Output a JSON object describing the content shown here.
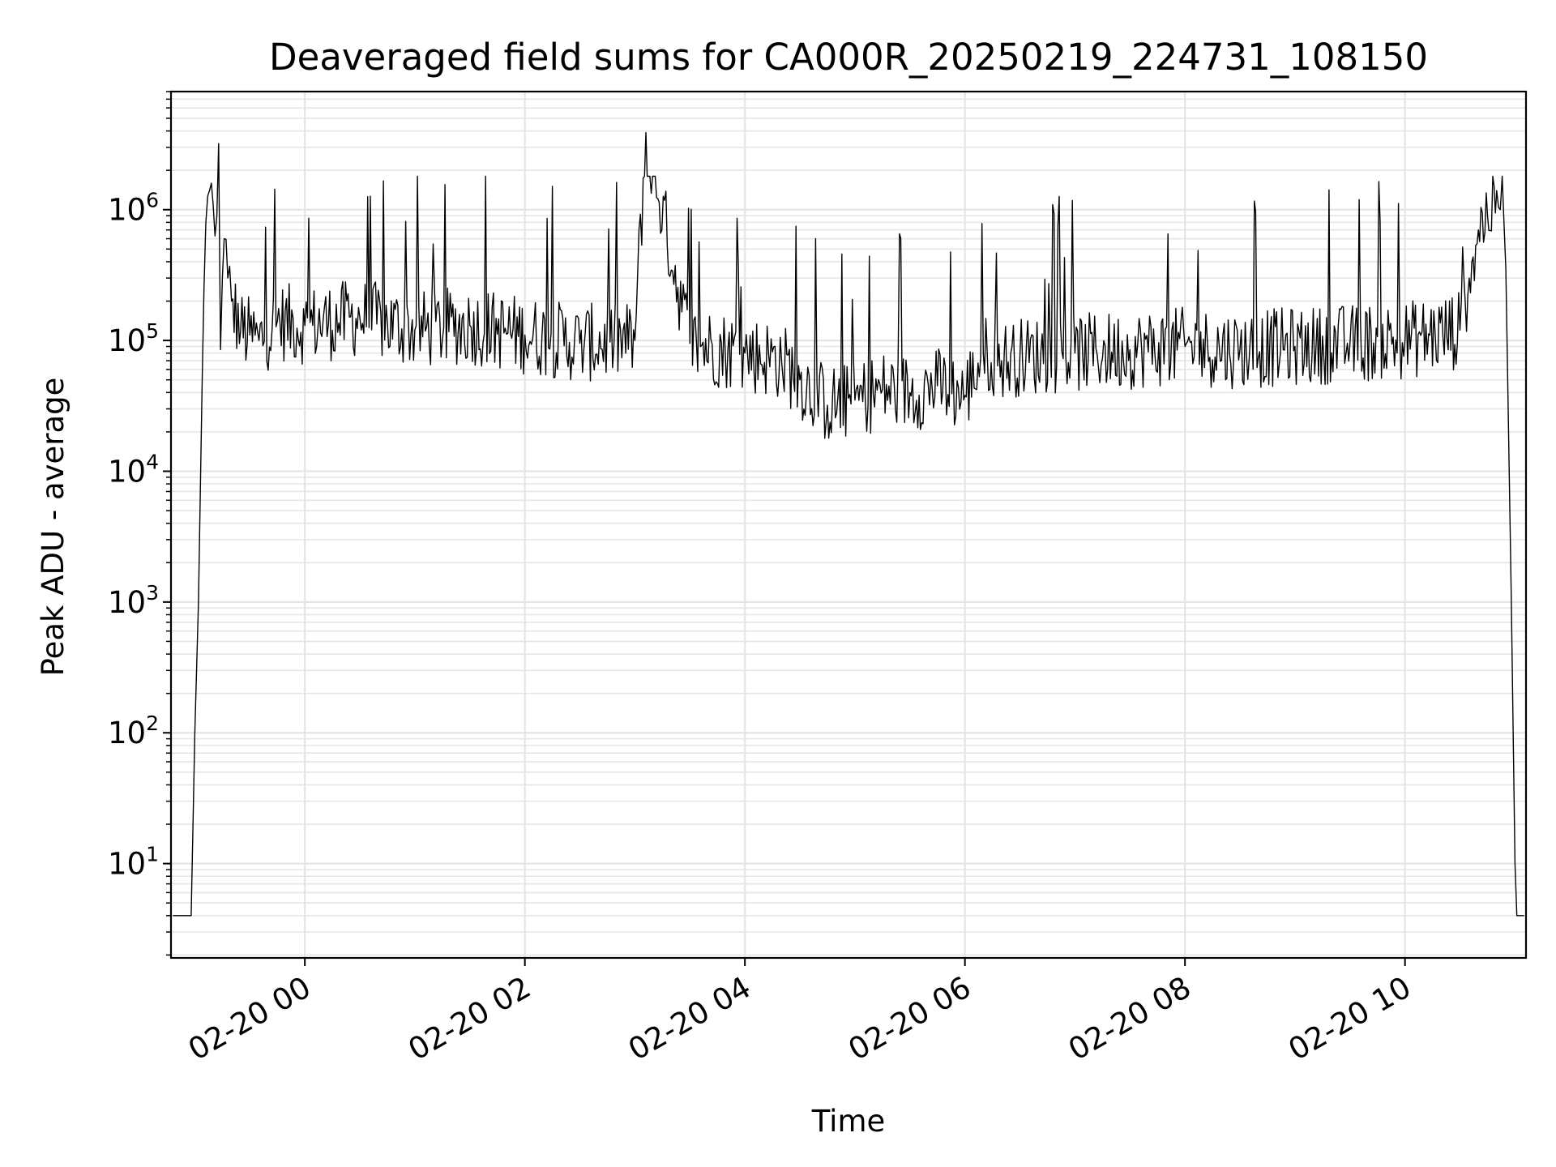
{
  "chart_data": {
    "type": "line",
    "title": "Deaveraged field sums for CA000R_20250219_224731_108150",
    "xlabel": "Time",
    "ylabel": "Peak ADU - average",
    "x_scale": "time",
    "y_scale": "log",
    "xlim": [
      "2025-02-19 22:47",
      "2025-02-20 11:06"
    ],
    "ylim": [
      1.9,
      8000000
    ],
    "grid": true,
    "legend": "none",
    "line_color": "#000000",
    "grid_color": "#e5e5e5",
    "x_ticks": [
      {
        "value": "2025-02-20 00:00",
        "label": "02-20 00"
      },
      {
        "value": "2025-02-20 02:00",
        "label": "02-20 02"
      },
      {
        "value": "2025-02-20 04:00",
        "label": "02-20 04"
      },
      {
        "value": "2025-02-20 06:00",
        "label": "02-20 06"
      },
      {
        "value": "2025-02-20 08:00",
        "label": "02-20 08"
      },
      {
        "value": "2025-02-20 10:00",
        "label": "02-20 10"
      }
    ],
    "y_ticks": [
      {
        "value": 10,
        "base": "10",
        "exp": "1"
      },
      {
        "value": 100,
        "base": "10",
        "exp": "2"
      },
      {
        "value": 1000,
        "base": "10",
        "exp": "3"
      },
      {
        "value": 10000,
        "base": "10",
        "exp": "4"
      },
      {
        "value": 100000,
        "base": "10",
        "exp": "5"
      },
      {
        "value": 1000000,
        "base": "10",
        "exp": "6"
      }
    ],
    "series": [
      {
        "x": [
          "2025-02-19 22:48",
          "2025-02-19 22:52",
          "2025-02-19 22:55",
          "2025-02-19 22:58",
          "2025-02-19 23:00",
          "2025-02-19 23:02",
          "2025-02-19 23:04",
          "2025-02-19 23:06",
          "2025-02-19 23:08",
          "2025-02-19 23:10",
          "2025-02-19 23:12",
          "2025-02-19 23:13",
          "2025-02-19 23:14",
          "2025-02-19 23:16",
          "2025-02-19 23:18",
          "2025-02-19 23:20",
          "2025-02-19 23:25",
          "2025-02-19 23:30",
          "2025-02-19 23:35",
          "2025-02-19 23:45",
          "2025-02-20 00:00",
          "2025-02-20 00:30",
          "2025-02-20 01:00",
          "2025-02-20 01:30",
          "2025-02-20 02:00",
          "2025-02-20 02:30",
          "2025-02-20 03:00",
          "2025-02-20 03:06",
          "2025-02-20 03:30",
          "2025-02-20 04:00",
          "2025-02-20 04:20",
          "2025-02-20 04:30",
          "2025-02-20 04:45",
          "2025-02-20 05:00",
          "2025-02-20 05:15",
          "2025-02-20 05:30",
          "2025-02-20 05:45",
          "2025-02-20 06:00",
          "2025-02-20 06:10",
          "2025-02-20 06:20",
          "2025-02-20 06:30",
          "2025-02-20 07:00",
          "2025-02-20 07:30",
          "2025-02-20 08:00",
          "2025-02-20 08:30",
          "2025-02-20 09:00",
          "2025-02-20 09:30",
          "2025-02-20 10:00",
          "2025-02-20 10:30",
          "2025-02-20 10:35",
          "2025-02-20 10:40",
          "2025-02-20 10:45",
          "2025-02-20 10:50",
          "2025-02-20 10:52",
          "2025-02-20 10:54",
          "2025-02-20 10:56",
          "2025-02-20 10:58",
          "2025-02-20 11:00",
          "2025-02-20 11:01",
          "2025-02-20 11:02",
          "2025-02-20 11:03",
          "2025-02-20 11:05"
        ],
        "y": [
          4,
          4,
          4,
          4,
          100,
          1000,
          50000,
          800000,
          1400000,
          1100000,
          900000,
          3200000,
          85000,
          600000,
          300000,
          200000,
          120000,
          110000,
          100000,
          140000,
          130000,
          150000,
          120000,
          130000,
          110000,
          95000,
          100000,
          3900000,
          95000,
          80000,
          70000,
          50000,
          32000,
          35000,
          42000,
          40000,
          45000,
          38000,
          80000,
          70000,
          75000,
          80000,
          85000,
          90000,
          85000,
          90000,
          95000,
          100000,
          120000,
          300000,
          700000,
          900000,
          1400000,
          1000000,
          800000,
          50000,
          1000,
          10,
          4,
          4,
          4,
          4
        ]
      }
    ]
  }
}
